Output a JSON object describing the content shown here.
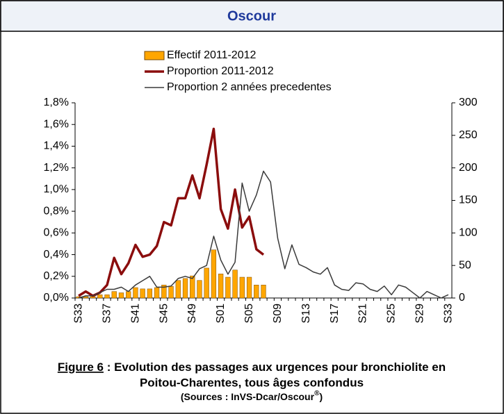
{
  "chart_data": {
    "type": "bar-line",
    "title": "Oscour",
    "categories": [
      "S33",
      null,
      null,
      null,
      "S37",
      null,
      null,
      null,
      "S41",
      null,
      null,
      null,
      "S45",
      null,
      null,
      null,
      "S49",
      null,
      null,
      null,
      "S01",
      null,
      null,
      null,
      "S05",
      null,
      null,
      null,
      "S09",
      null,
      null,
      null,
      "S13",
      null,
      null,
      null,
      "S17",
      null,
      null,
      null,
      "S21",
      null,
      null,
      null,
      "S25",
      null,
      null,
      null,
      "S29",
      null,
      null,
      null,
      "S33"
    ],
    "series": [
      {
        "name": "Effectif 2011-2012",
        "kind": "bar",
        "axis": "y2",
        "color": "#ffa600",
        "values": [
          2,
          2,
          3,
          5,
          5,
          10,
          8,
          10,
          16,
          14,
          14,
          16,
          20,
          18,
          27,
          30,
          34,
          27,
          46,
          74,
          37,
          32,
          43,
          32,
          32,
          20,
          20,
          null,
          null,
          null,
          null,
          null,
          null,
          null,
          null,
          null,
          null,
          null,
          null,
          null,
          null,
          null,
          null,
          null,
          null,
          null,
          null,
          null,
          null,
          null,
          null,
          null,
          null
        ]
      },
      {
        "name": "Proportion 2011-2012",
        "kind": "line",
        "axis": "y",
        "color": "#8b0d0d",
        "values": [
          0.02,
          0.06,
          0.02,
          0.05,
          0.12,
          0.37,
          0.22,
          0.32,
          0.49,
          0.38,
          0.4,
          0.48,
          0.7,
          0.67,
          0.92,
          0.92,
          1.13,
          0.92,
          1.23,
          1.56,
          0.82,
          0.64,
          1.0,
          0.65,
          0.75,
          0.45,
          0.4,
          null,
          null,
          null,
          null,
          null,
          null,
          null,
          null,
          null,
          null,
          null,
          null,
          null,
          null,
          null,
          null,
          null,
          null,
          null,
          null,
          null,
          null,
          null,
          null,
          null,
          null
        ]
      },
      {
        "name": "Proportion 2 années precedentes",
        "kind": "line",
        "axis": "y",
        "color": "#3a3a3a",
        "values": [
          0.0,
          0.02,
          0.02,
          0.05,
          0.08,
          0.08,
          0.1,
          0.06,
          0.12,
          0.16,
          0.2,
          0.1,
          0.1,
          0.11,
          0.18,
          0.2,
          0.18,
          0.27,
          0.3,
          0.57,
          0.35,
          0.22,
          0.33,
          1.06,
          0.8,
          0.95,
          1.17,
          1.07,
          0.55,
          0.27,
          0.49,
          0.31,
          0.28,
          0.24,
          0.22,
          0.28,
          0.12,
          0.08,
          0.07,
          0.14,
          0.13,
          0.08,
          0.06,
          0.11,
          0.03,
          0.12,
          0.1,
          0.05,
          0.0,
          0.06,
          0.03,
          0.0,
          0.03
        ]
      }
    ],
    "ylim": [
      0,
      1.8
    ],
    "yticks": [
      {
        "value": 0,
        "label": "0,0%"
      },
      {
        "value": 0.2,
        "label": "0,2%"
      },
      {
        "value": 0.4,
        "label": "0,4%"
      },
      {
        "value": 0.6,
        "label": "0,6%"
      },
      {
        "value": 0.8,
        "label": "0,8%"
      },
      {
        "value": 1.0,
        "label": "1,0%"
      },
      {
        "value": 1.2,
        "label": "1,2%"
      },
      {
        "value": 1.4,
        "label": "1,4%"
      },
      {
        "value": 1.6,
        "label": "1,6%"
      },
      {
        "value": 1.8,
        "label": "1,8%"
      }
    ],
    "y2lim": [
      0,
      300
    ],
    "y2ticks": [
      0,
      50,
      100,
      150,
      200,
      250,
      300
    ],
    "caption_label": "Figure 6",
    "caption_lines": [
      " : Evolution des passages aux urgences pour bronchiolite en",
      "Poitou-Charentes, tous âges confondus"
    ],
    "sources": [
      "(Sources : InVS-Dcar/Oscour",
      "®",
      ")"
    ]
  }
}
